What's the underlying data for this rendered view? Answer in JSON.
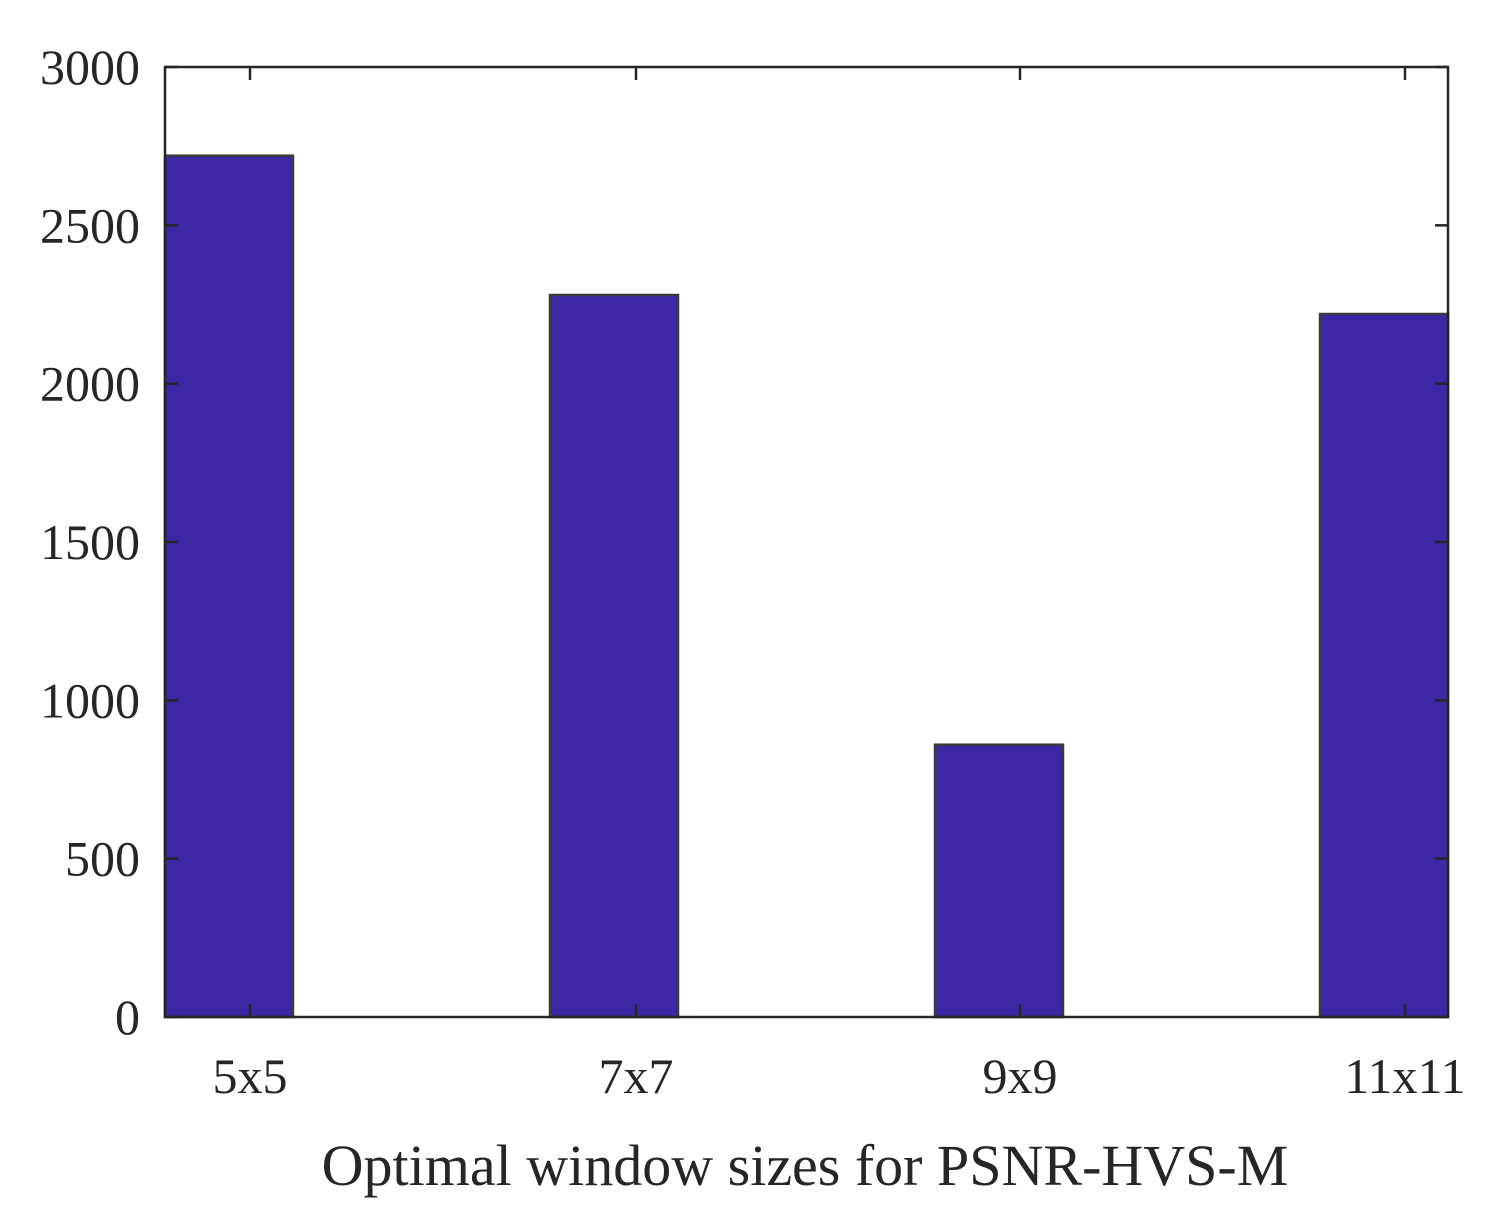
{
  "chart_data": {
    "type": "bar",
    "title": "",
    "xlabel": "Optimal window sizes for PSNR-HVS-M",
    "ylabel": "",
    "categories": [
      "5x5",
      "7x7",
      "9x9",
      "11x11"
    ],
    "values": [
      2720,
      2280,
      860,
      2220
    ],
    "ylim": [
      0,
      3000
    ],
    "yticks": [
      0,
      500,
      1000,
      1500,
      2000,
      2500,
      3000
    ],
    "yticklabels": [
      "0",
      "500",
      "1000",
      "1500",
      "2000",
      "2500",
      "3000"
    ],
    "grid": false,
    "legend": "none",
    "bar_color": "#3d27a5",
    "axis_color": "#262626"
  }
}
